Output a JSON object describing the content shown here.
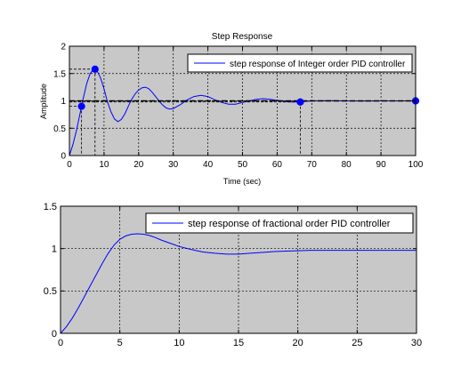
{
  "chart_data": [
    {
      "type": "line",
      "title": "Step Response",
      "xlabel": "Time (sec)",
      "ylabel": "Amplitude",
      "xlim": [
        0,
        100
      ],
      "ylim": [
        0,
        2
      ],
      "xticks": [
        0,
        10,
        20,
        30,
        40,
        50,
        60,
        70,
        80,
        90,
        100
      ],
      "yticks": [
        0,
        0.5,
        1,
        1.5,
        2
      ],
      "grid": true,
      "legend_position": "top-right",
      "series": [
        {
          "name": "step response of Integer order PID controller",
          "color": "#0000ff",
          "x": [
            0,
            1,
            2,
            3,
            4,
            5,
            6,
            7,
            8,
            9,
            10,
            11,
            12,
            13,
            14,
            15,
            16,
            17,
            18,
            19,
            20,
            21,
            22,
            23,
            24,
            25,
            26,
            27,
            28,
            29,
            30,
            32,
            34,
            36,
            38,
            40,
            42,
            44,
            46,
            48,
            50,
            52,
            54,
            56,
            58,
            60,
            62,
            64,
            66,
            68,
            70,
            75,
            80,
            85,
            90,
            95,
            100
          ],
          "y": [
            0,
            0.2,
            0.45,
            0.75,
            1.05,
            1.32,
            1.5,
            1.58,
            1.55,
            1.42,
            1.22,
            0.98,
            0.8,
            0.67,
            0.62,
            0.66,
            0.76,
            0.9,
            1.03,
            1.13,
            1.2,
            1.24,
            1.25,
            1.22,
            1.15,
            1.07,
            0.99,
            0.92,
            0.87,
            0.85,
            0.86,
            0.93,
            1.02,
            1.08,
            1.1,
            1.08,
            1.02,
            0.97,
            0.94,
            0.94,
            0.97,
            1.0,
            1.03,
            1.04,
            1.03,
            1.01,
            0.99,
            0.98,
            0.98,
            0.99,
            1.0,
            1.005,
            1.0,
            0.998,
            1.0,
            1.0,
            1.0
          ]
        },
        {
          "name": "final value",
          "color": "#000000",
          "dash": true,
          "x": [
            0,
            100
          ],
          "y": [
            1,
            1
          ]
        }
      ],
      "markers": [
        {
          "x": 3.5,
          "y": 0.9
        },
        {
          "x": 7.4,
          "y": 1.58
        },
        {
          "x": 66.7,
          "y": 0.98
        },
        {
          "x": 100,
          "y": 1.0
        }
      ]
    },
    {
      "type": "line",
      "title": "",
      "xlabel": "",
      "ylabel": "",
      "xlim": [
        0,
        30
      ],
      "ylim": [
        0,
        1.5
      ],
      "xticks": [
        0,
        5,
        10,
        15,
        20,
        25,
        30
      ],
      "yticks": [
        0,
        0.5,
        1,
        1.5
      ],
      "grid": true,
      "legend_position": "top-right",
      "series": [
        {
          "name": "step response of fractional order PID controller",
          "color": "#0000ff",
          "x": [
            0,
            0.5,
            1,
            1.5,
            2,
            2.5,
            3,
            3.5,
            4,
            4.5,
            5,
            5.5,
            6,
            6.5,
            7,
            7.5,
            8,
            8.5,
            9,
            9.5,
            10,
            11,
            12,
            13,
            14,
            15,
            16,
            17,
            18,
            19,
            20,
            21,
            22,
            23,
            24,
            25,
            26,
            27,
            28,
            29,
            30
          ],
          "y": [
            0,
            0.08,
            0.18,
            0.3,
            0.43,
            0.56,
            0.69,
            0.82,
            0.94,
            1.04,
            1.11,
            1.15,
            1.17,
            1.175,
            1.17,
            1.155,
            1.13,
            1.1,
            1.075,
            1.05,
            1.025,
            0.99,
            0.96,
            0.945,
            0.935,
            0.935,
            0.945,
            0.955,
            0.965,
            0.97,
            0.975,
            0.98,
            0.98,
            0.98,
            0.98,
            0.98,
            0.98,
            0.98,
            0.98,
            0.98,
            0.98
          ]
        }
      ]
    }
  ]
}
